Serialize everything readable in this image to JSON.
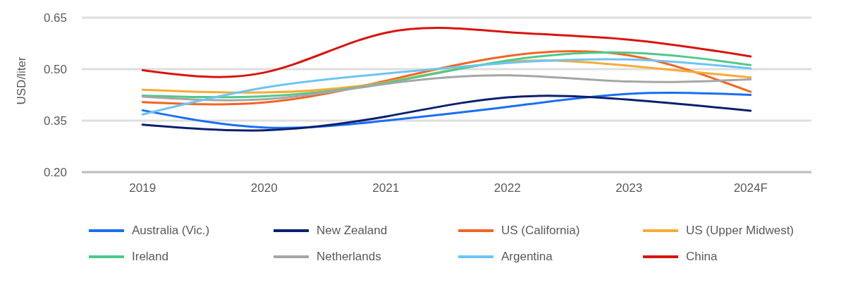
{
  "chart_data": {
    "type": "line",
    "ylabel": "USD/liter",
    "categories": [
      "2019",
      "2020",
      "2021",
      "2022",
      "2023",
      "2024F"
    ],
    "series": [
      {
        "name": "Australia (Vic.)",
        "color": "#1a6ff0",
        "values": [
          0.38,
          0.33,
          0.35,
          0.39,
          0.428,
          0.425
        ]
      },
      {
        "name": "New Zealand",
        "color": "#0b1f6e",
        "values": [
          0.338,
          0.322,
          0.362,
          0.418,
          0.411,
          0.379
        ]
      },
      {
        "name": "US (California)",
        "color": "#f26522",
        "values": [
          0.404,
          0.403,
          0.466,
          0.538,
          0.54,
          0.434
        ]
      },
      {
        "name": "US (Upper Midwest)",
        "color": "#f7ab35",
        "values": [
          0.44,
          0.432,
          0.462,
          0.521,
          0.51,
          0.476
        ]
      },
      {
        "name": "Ireland",
        "color": "#4ec98b",
        "values": [
          0.423,
          0.421,
          0.46,
          0.525,
          0.548,
          0.512
        ]
      },
      {
        "name": "Netherlands",
        "color": "#a6a6a6",
        "values": [
          0.42,
          0.412,
          0.457,
          0.482,
          0.464,
          0.47
        ]
      },
      {
        "name": "Argentina",
        "color": "#6cc5f4",
        "values": [
          0.368,
          0.446,
          0.487,
          0.518,
          0.528,
          0.502
        ]
      },
      {
        "name": "China",
        "color": "#d9140f",
        "values": [
          0.497,
          0.49,
          0.606,
          0.608,
          0.586,
          0.537
        ]
      }
    ],
    "ylim": [
      0.2,
      0.65
    ],
    "yticks": [
      {
        "value": 0.2,
        "label": "0.20"
      },
      {
        "value": 0.35,
        "label": "0.35"
      },
      {
        "value": 0.5,
        "label": "0.50"
      },
      {
        "value": 0.65,
        "label": "0.65"
      }
    ],
    "grid": "y",
    "legend": "bottom",
    "marker": "none",
    "line_style": "solid"
  }
}
